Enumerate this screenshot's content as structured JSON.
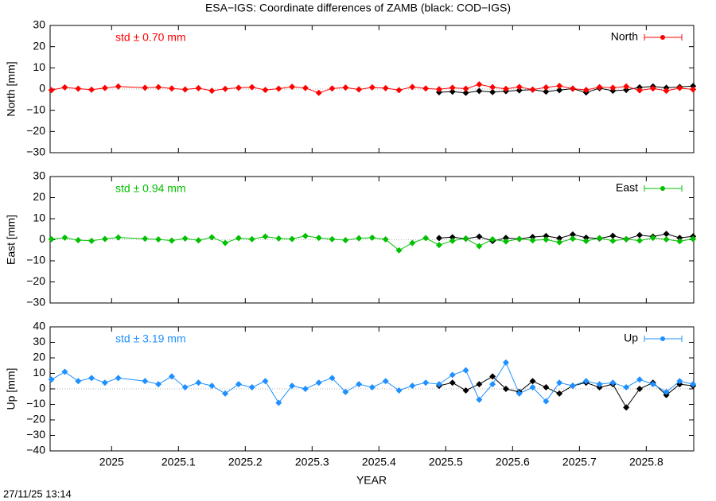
{
  "title": "ESA−IGS: Coordinate differences of ZAMB (black: COD−IGS)",
  "xlabel": "YEAR",
  "timestamp": "27/11/25 13:14",
  "xlim": [
    2024.908,
    2025.871
  ],
  "xticks": [
    2025,
    2025.1,
    2025.2,
    2025.3,
    2025.4,
    2025.5,
    2025.6,
    2025.7,
    2025.8
  ],
  "chart_data": [
    {
      "type": "line",
      "ylabel": "North [mm]",
      "annotation": "std ± 0.70 mm",
      "ylim": [
        -30,
        30
      ],
      "yticks": [
        {
          "value": -30,
          "label": "−30"
        },
        {
          "value": -20,
          "label": "−20"
        },
        {
          "value": -10,
          "label": "−10"
        },
        0,
        10,
        20,
        30
      ],
      "series": [
        {
          "name": "North",
          "color": "#ff0000",
          "x": [
            2024.91,
            2024.93,
            2024.95,
            2024.97,
            2024.99,
            2025.01,
            2025.05,
            2025.07,
            2025.09,
            2025.11,
            2025.13,
            2025.15,
            2025.17,
            2025.19,
            2025.21,
            2025.23,
            2025.25,
            2025.27,
            2025.29,
            2025.31,
            2025.33,
            2025.35,
            2025.37,
            2025.39,
            2025.41,
            2025.43,
            2025.45,
            2025.47,
            2025.49,
            2025.51,
            2025.53,
            2025.55,
            2025.57,
            2025.59,
            2025.61,
            2025.63,
            2025.65,
            2025.67,
            2025.69,
            2025.71,
            2025.73,
            2025.75,
            2025.77,
            2025.79,
            2025.81,
            2025.83,
            2025.85,
            2025.87
          ],
          "values": [
            -0.5,
            0.8,
            0.2,
            -0.3,
            0.5,
            1.2,
            0.6,
            0.9,
            0.3,
            -0.2,
            0.4,
            -0.8,
            0.1,
            0.6,
            0.9,
            -0.4,
            0.2,
            1.1,
            0.5,
            -1.8,
            0.3,
            0.7,
            -0.2,
            0.8,
            0.4,
            -0.5,
            1.0,
            0.3,
            -0.1,
            0.6,
            0.2,
            2.2,
            0.9,
            0.1,
            1.0,
            -0.3,
            0.8,
            1.5,
            0.2,
            -0.4,
            0.9,
            0.6,
            1.2,
            -0.6,
            0.3,
            -0.8,
            0.5,
            -0.2
          ]
        },
        {
          "color": "#000000",
          "x": [
            2025.49,
            2025.51,
            2025.53,
            2025.55,
            2025.57,
            2025.59,
            2025.61,
            2025.63,
            2025.65,
            2025.67,
            2025.69,
            2025.71,
            2025.73,
            2025.75,
            2025.77,
            2025.79,
            2025.81,
            2025.83,
            2025.85,
            2025.87
          ],
          "values": [
            -1.5,
            -1.2,
            -1.8,
            -0.9,
            -1.4,
            -1.0,
            -0.6,
            -0.3,
            -1.2,
            -0.5,
            0.2,
            -1.6,
            0.4,
            -0.8,
            -0.4,
            0.8,
            1.2,
            0.6,
            1.0,
            1.4
          ]
        }
      ]
    },
    {
      "type": "line",
      "ylabel": "East [mm]",
      "annotation": "std ± 0.94 mm",
      "ylim": [
        -30,
        30
      ],
      "yticks": [
        {
          "value": -30,
          "label": "−30"
        },
        {
          "value": -20,
          "label": "−20"
        },
        {
          "value": -10,
          "label": "−10"
        },
        0,
        10,
        20,
        30
      ],
      "series": [
        {
          "name": "East",
          "color": "#00c000",
          "x": [
            2024.91,
            2024.93,
            2024.95,
            2024.97,
            2024.99,
            2025.01,
            2025.05,
            2025.07,
            2025.09,
            2025.11,
            2025.13,
            2025.15,
            2025.17,
            2025.19,
            2025.21,
            2025.23,
            2025.25,
            2025.27,
            2025.29,
            2025.31,
            2025.33,
            2025.35,
            2025.37,
            2025.39,
            2025.41,
            2025.43,
            2025.45,
            2025.47,
            2025.49,
            2025.51,
            2025.53,
            2025.55,
            2025.57,
            2025.59,
            2025.61,
            2025.63,
            2025.65,
            2025.67,
            2025.69,
            2025.71,
            2025.73,
            2025.75,
            2025.77,
            2025.79,
            2025.81,
            2025.83,
            2025.85,
            2025.87
          ],
          "values": [
            0.3,
            1.0,
            -0.2,
            -0.5,
            0.4,
            1.1,
            0.5,
            0.2,
            -0.4,
            0.6,
            -0.3,
            1.2,
            -1.5,
            0.8,
            0.3,
            1.5,
            0.6,
            0.4,
            1.8,
            0.9,
            0.3,
            -0.2,
            0.7,
            1.0,
            0.2,
            -5.0,
            -1.5,
            0.8,
            -2.5,
            -0.5,
            0.6,
            -3.0,
            0.2,
            -0.8,
            0.4,
            -0.3,
            0.1,
            -1.2,
            0.5,
            -0.6,
            0.8,
            -0.5,
            0.3,
            -0.4,
            0.9,
            0.2,
            -0.7,
            0.4
          ]
        },
        {
          "color": "#000000",
          "x": [
            2025.49,
            2025.51,
            2025.53,
            2025.55,
            2025.57,
            2025.59,
            2025.61,
            2025.63,
            2025.65,
            2025.67,
            2025.69,
            2025.71,
            2025.73,
            2025.75,
            2025.77,
            2025.79,
            2025.81,
            2025.83,
            2025.85,
            2025.87
          ],
          "values": [
            0.8,
            1.2,
            0.5,
            1.5,
            -0.6,
            0.9,
            0.4,
            1.3,
            1.8,
            0.7,
            2.5,
            1.0,
            0.6,
            1.9,
            0.3,
            2.2,
            1.5,
            2.8,
            0.9,
            1.6
          ]
        }
      ]
    },
    {
      "type": "line",
      "ylabel": "Up [mm]",
      "annotation": "std ± 3.19 mm",
      "ylim": [
        -40,
        40
      ],
      "yticks": [
        {
          "value": -40,
          "label": "−40"
        },
        {
          "value": -30,
          "label": "−30"
        },
        {
          "value": -20,
          "label": "−20"
        },
        {
          "value": -10,
          "label": "−10"
        },
        0,
        10,
        20,
        30,
        40
      ],
      "series": [
        {
          "name": "Up",
          "color": "#1e90ff",
          "x": [
            2024.91,
            2024.93,
            2024.95,
            2024.97,
            2024.99,
            2025.01,
            2025.05,
            2025.07,
            2025.09,
            2025.11,
            2025.13,
            2025.15,
            2025.17,
            2025.19,
            2025.21,
            2025.23,
            2025.25,
            2025.27,
            2025.29,
            2025.31,
            2025.33,
            2025.35,
            2025.37,
            2025.39,
            2025.41,
            2025.43,
            2025.45,
            2025.47,
            2025.49,
            2025.51,
            2025.53,
            2025.55,
            2025.57,
            2025.59,
            2025.61,
            2025.63,
            2025.65,
            2025.67,
            2025.69,
            2025.71,
            2025.73,
            2025.75,
            2025.77,
            2025.79,
            2025.81,
            2025.83,
            2025.85,
            2025.87
          ],
          "values": [
            6,
            11,
            5,
            7,
            4,
            7,
            5,
            3,
            8,
            1,
            4,
            2,
            -3,
            3,
            1,
            5,
            -9,
            2,
            0,
            4,
            7,
            -2,
            3,
            1,
            5,
            -1,
            2,
            4,
            3,
            9,
            12,
            -7,
            3,
            17,
            -3,
            1,
            -8,
            4,
            2,
            5,
            3,
            4,
            1,
            6,
            3,
            -2,
            5,
            3
          ]
        },
        {
          "color": "#000000",
          "x": [
            2025.49,
            2025.51,
            2025.53,
            2025.55,
            2025.57,
            2025.59,
            2025.61,
            2025.63,
            2025.65,
            2025.67,
            2025.69,
            2025.71,
            2025.73,
            2025.75,
            2025.77,
            2025.79,
            2025.81,
            2025.83,
            2025.85,
            2025.87
          ],
          "values": [
            2,
            4,
            -1,
            3,
            8,
            0,
            -2,
            5,
            1,
            -3,
            2,
            4,
            1,
            3,
            -12,
            0,
            4,
            -4,
            3,
            2
          ]
        }
      ]
    }
  ]
}
